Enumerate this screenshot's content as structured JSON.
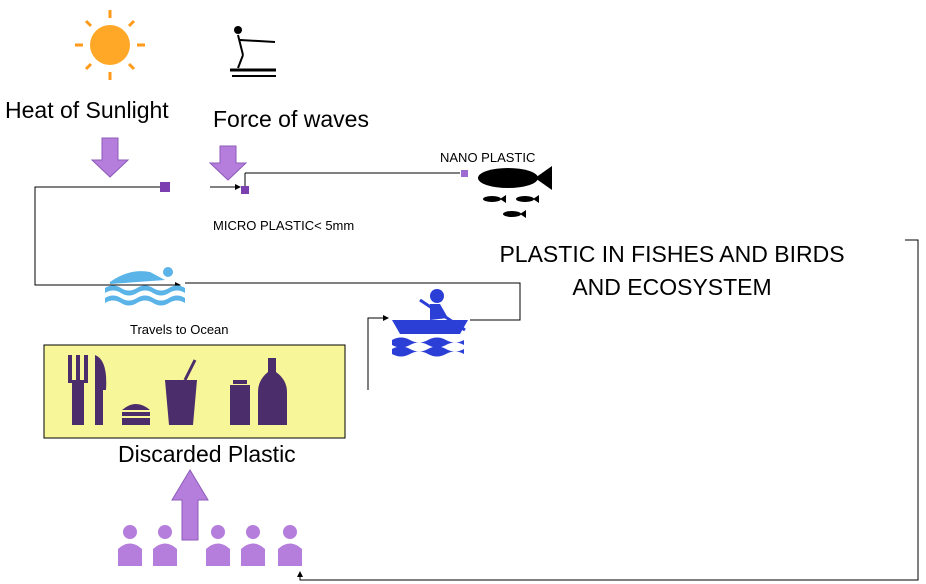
{
  "labels": {
    "heat": "Heat of Sunlight",
    "waves": "Force of waves",
    "nano": "NANO PLASTIC",
    "micro": "MICRO PLASTIC< 5mm",
    "impact": [
      "PLASTIC IN FISHES AND BIRDS",
      "AND ECOSYSTEM"
    ],
    "travel": "Travels to Ocean",
    "discarded": "Discarded Plastic"
  }
}
